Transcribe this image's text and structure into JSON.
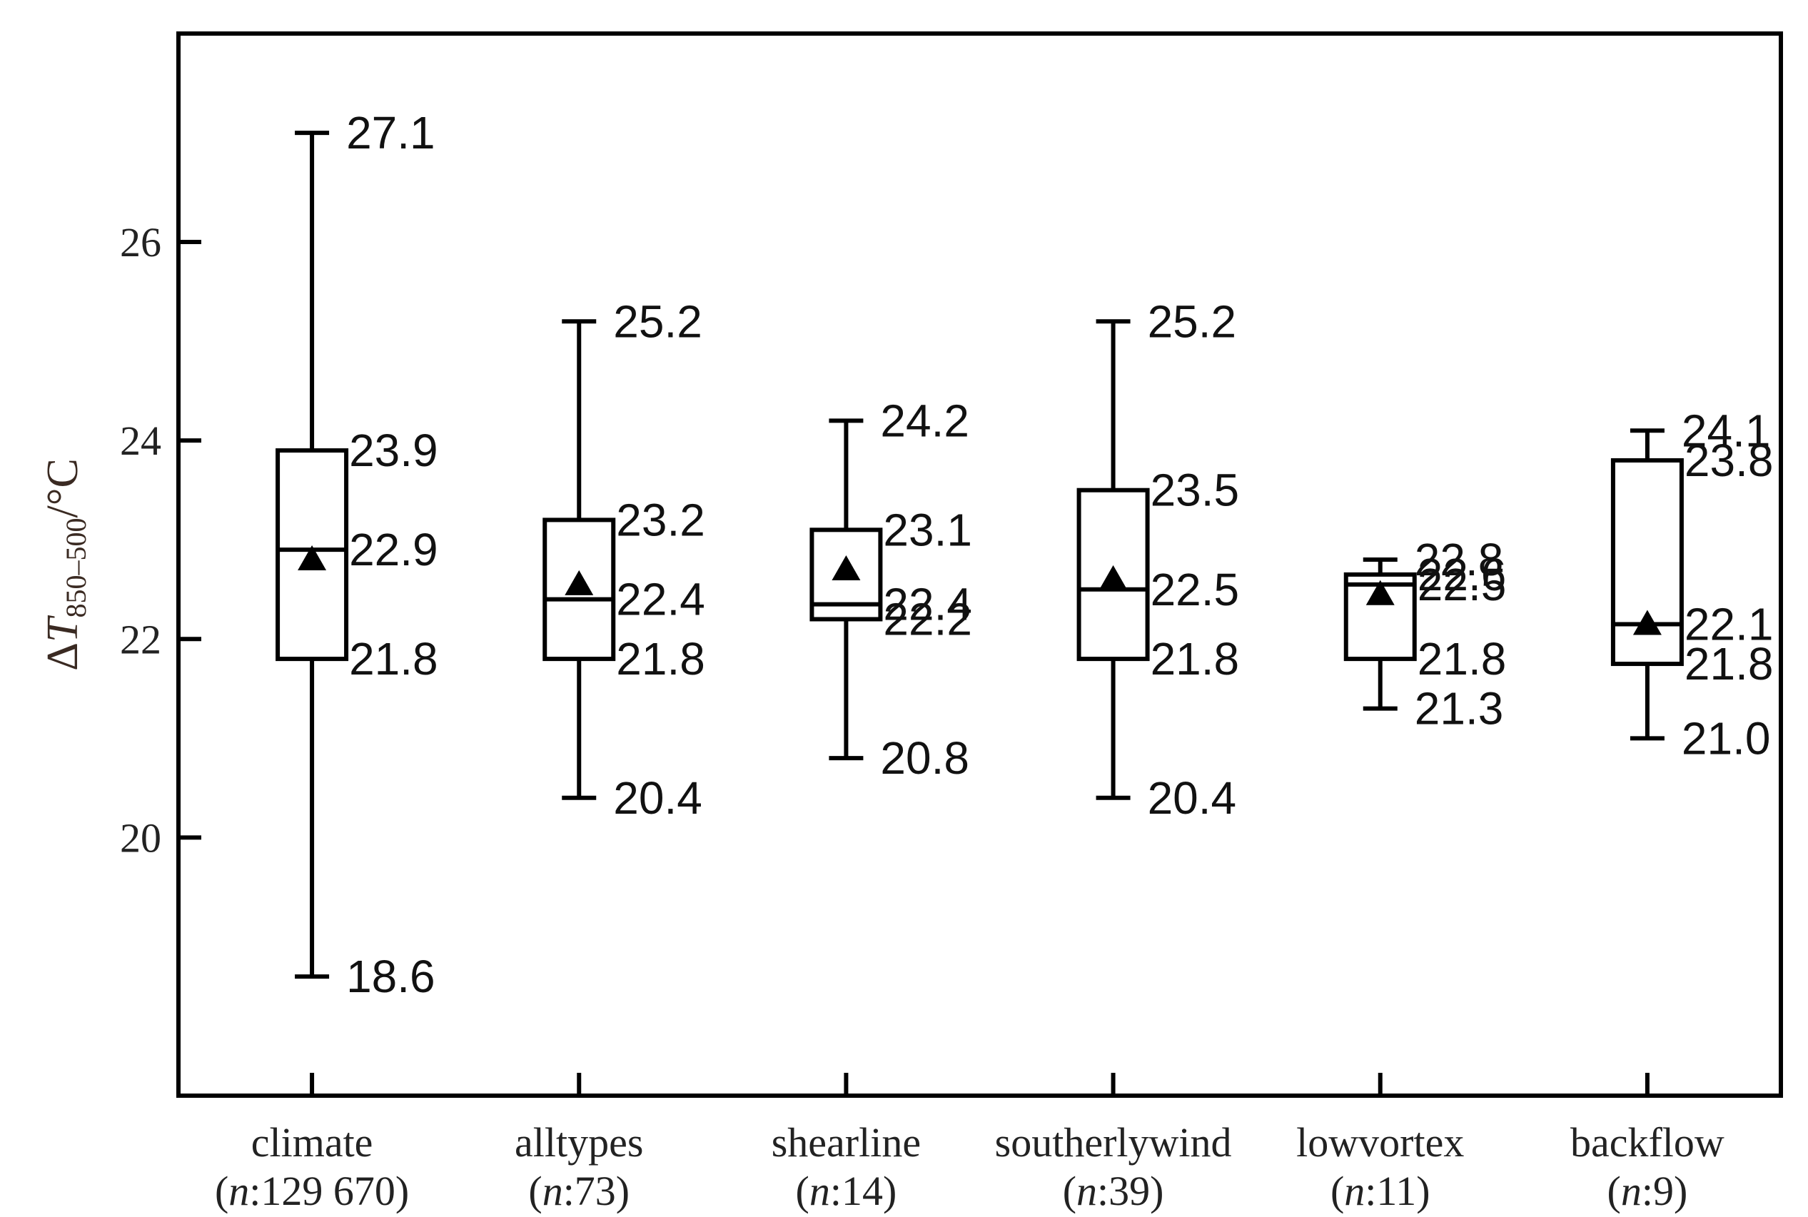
{
  "chart_data": {
    "type": "boxplot",
    "ylabel": {
      "prefix": "Δ",
      "symbol": "T",
      "subscript": "850–500",
      "unit": "/°C"
    },
    "ylim": [
      17.4,
      28.1
    ],
    "yticks": [
      20,
      22,
      24,
      26
    ],
    "grid": false,
    "legend": "none",
    "mean_marker": "triangle",
    "colors": {
      "stroke": "#000000",
      "text": "#222222"
    },
    "categories": [
      {
        "name": "climate",
        "n_prefix": "n",
        "n_value": ":129 670",
        "min": 18.6,
        "q1": 21.8,
        "median": 22.9,
        "q3": 23.9,
        "max": 27.1,
        "mean": 22.8,
        "labels": {
          "max": "27.1",
          "q3": "23.9",
          "median": "22.9",
          "q1": "21.8",
          "min": "18.6"
        }
      },
      {
        "name": "alltypes",
        "n_prefix": "n",
        "n_value": ":73",
        "min": 20.4,
        "q1": 21.8,
        "median": 22.4,
        "q3": 23.2,
        "max": 25.2,
        "mean": 22.55,
        "labels": {
          "max": "25.2",
          "q3": "23.2",
          "median": "22.4",
          "q1": "21.8",
          "min": "20.4"
        }
      },
      {
        "name": "shearline",
        "n_prefix": "n",
        "n_value": ":14",
        "min": 20.8,
        "q1": 22.2,
        "median": 22.35,
        "q3": 23.1,
        "max": 24.2,
        "mean": 22.7,
        "labels": {
          "max": "24.2",
          "q3": "23.1",
          "median": "22.4",
          "q1": "22.2",
          "min": "20.8"
        }
      },
      {
        "name": "southerlywind",
        "n_prefix": "n",
        "n_value": ":39",
        "min": 20.4,
        "q1": 21.8,
        "median": 22.5,
        "q3": 23.5,
        "max": 25.2,
        "mean": 22.6,
        "labels": {
          "max": "25.2",
          "q3": "23.5",
          "median": "22.5",
          "q1": "21.8",
          "min": "20.4"
        }
      },
      {
        "name": "lowvortex",
        "n_prefix": "n",
        "n_value": ":11",
        "min": 21.3,
        "q1": 21.8,
        "median": 22.55,
        "q3": 22.65,
        "max": 22.8,
        "mean": 22.45,
        "labels": {
          "max": "22.8",
          "q3": "22.6",
          "median": "22.5",
          "q1": "21.8",
          "min": "21.3"
        }
      },
      {
        "name": "backflow",
        "n_prefix": "n",
        "n_value": ":9",
        "min": 21.0,
        "q1": 21.75,
        "median": 22.15,
        "q3": 23.8,
        "max": 24.1,
        "mean": 22.15,
        "labels": {
          "max": "24.1",
          "q3": "23.8",
          "median": "22.1",
          "q1": "21.8",
          "min": "21.0"
        }
      }
    ]
  }
}
